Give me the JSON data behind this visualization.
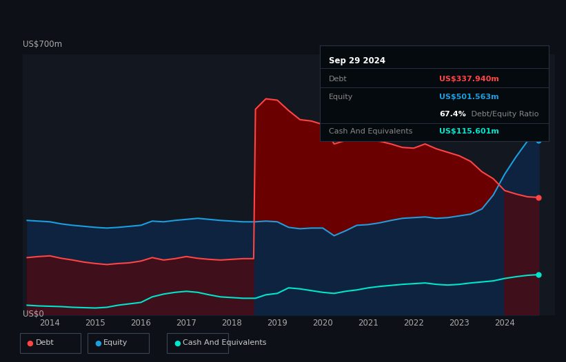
{
  "bg_color": "#0d1117",
  "plot_bg_color": "#131820",
  "debt_color": "#ff4444",
  "equity_color": "#1a9fe0",
  "cash_color": "#00e5cc",
  "debt_fill_color": "#6b0000",
  "equity_fill_color": "#0d2340",
  "cash_fill_color": "#0a2020",
  "grid_color": "#1e2535",
  "ylabel_top": "US$700m",
  "ylabel_bottom": "US$0",
  "x_ticks": [
    2014,
    2015,
    2016,
    2017,
    2018,
    2019,
    2020,
    2021,
    2022,
    2023,
    2024
  ],
  "debt_data": [
    [
      2013.5,
      165
    ],
    [
      2013.75,
      168
    ],
    [
      2014.0,
      170
    ],
    [
      2014.25,
      163
    ],
    [
      2014.5,
      158
    ],
    [
      2014.75,
      152
    ],
    [
      2015.0,
      148
    ],
    [
      2015.25,
      145
    ],
    [
      2015.5,
      148
    ],
    [
      2015.75,
      150
    ],
    [
      2016.0,
      155
    ],
    [
      2016.25,
      165
    ],
    [
      2016.5,
      158
    ],
    [
      2016.75,
      162
    ],
    [
      2017.0,
      168
    ],
    [
      2017.25,
      163
    ],
    [
      2017.5,
      160
    ],
    [
      2017.75,
      158
    ],
    [
      2018.0,
      160
    ],
    [
      2018.25,
      162
    ],
    [
      2018.48,
      162
    ],
    [
      2018.52,
      592
    ],
    [
      2018.75,
      622
    ],
    [
      2019.0,
      618
    ],
    [
      2019.25,
      588
    ],
    [
      2019.5,
      562
    ],
    [
      2019.75,
      558
    ],
    [
      2020.0,
      548
    ],
    [
      2020.25,
      492
    ],
    [
      2020.5,
      502
    ],
    [
      2020.75,
      508
    ],
    [
      2021.0,
      502
    ],
    [
      2021.25,
      500
    ],
    [
      2021.5,
      492
    ],
    [
      2021.75,
      482
    ],
    [
      2022.0,
      480
    ],
    [
      2022.25,
      492
    ],
    [
      2022.5,
      478
    ],
    [
      2022.75,
      468
    ],
    [
      2023.0,
      458
    ],
    [
      2023.25,
      442
    ],
    [
      2023.5,
      412
    ],
    [
      2023.75,
      392
    ],
    [
      2024.0,
      358
    ],
    [
      2024.25,
      348
    ],
    [
      2024.5,
      340
    ],
    [
      2024.75,
      338
    ]
  ],
  "equity_data": [
    [
      2013.5,
      272
    ],
    [
      2013.75,
      270
    ],
    [
      2014.0,
      268
    ],
    [
      2014.25,
      262
    ],
    [
      2014.5,
      258
    ],
    [
      2014.75,
      255
    ],
    [
      2015.0,
      252
    ],
    [
      2015.25,
      250
    ],
    [
      2015.5,
      252
    ],
    [
      2015.75,
      255
    ],
    [
      2016.0,
      258
    ],
    [
      2016.25,
      270
    ],
    [
      2016.5,
      268
    ],
    [
      2016.75,
      272
    ],
    [
      2017.0,
      275
    ],
    [
      2017.25,
      278
    ],
    [
      2017.5,
      275
    ],
    [
      2017.75,
      272
    ],
    [
      2018.0,
      270
    ],
    [
      2018.25,
      268
    ],
    [
      2018.48,
      268
    ],
    [
      2018.52,
      268
    ],
    [
      2018.75,
      270
    ],
    [
      2019.0,
      268
    ],
    [
      2019.25,
      252
    ],
    [
      2019.5,
      248
    ],
    [
      2019.75,
      250
    ],
    [
      2020.0,
      250
    ],
    [
      2020.25,
      228
    ],
    [
      2020.5,
      242
    ],
    [
      2020.75,
      258
    ],
    [
      2021.0,
      260
    ],
    [
      2021.25,
      265
    ],
    [
      2021.5,
      272
    ],
    [
      2021.75,
      278
    ],
    [
      2022.0,
      280
    ],
    [
      2022.25,
      282
    ],
    [
      2022.5,
      278
    ],
    [
      2022.75,
      280
    ],
    [
      2023.0,
      285
    ],
    [
      2023.25,
      290
    ],
    [
      2023.5,
      305
    ],
    [
      2023.75,
      345
    ],
    [
      2024.0,
      405
    ],
    [
      2024.25,
      455
    ],
    [
      2024.5,
      500
    ],
    [
      2024.75,
      502
    ]
  ],
  "cash_data": [
    [
      2013.5,
      28
    ],
    [
      2013.75,
      26
    ],
    [
      2014.0,
      25
    ],
    [
      2014.25,
      24
    ],
    [
      2014.5,
      22
    ],
    [
      2014.75,
      21
    ],
    [
      2015.0,
      20
    ],
    [
      2015.25,
      22
    ],
    [
      2015.5,
      28
    ],
    [
      2015.75,
      32
    ],
    [
      2016.0,
      36
    ],
    [
      2016.25,
      52
    ],
    [
      2016.5,
      60
    ],
    [
      2016.75,
      65
    ],
    [
      2017.0,
      68
    ],
    [
      2017.25,
      65
    ],
    [
      2017.5,
      58
    ],
    [
      2017.75,
      52
    ],
    [
      2018.0,
      50
    ],
    [
      2018.25,
      48
    ],
    [
      2018.48,
      48
    ],
    [
      2018.52,
      48
    ],
    [
      2018.75,
      58
    ],
    [
      2019.0,
      62
    ],
    [
      2019.25,
      78
    ],
    [
      2019.5,
      75
    ],
    [
      2019.75,
      70
    ],
    [
      2020.0,
      65
    ],
    [
      2020.25,
      62
    ],
    [
      2020.5,
      68
    ],
    [
      2020.75,
      72
    ],
    [
      2021.0,
      78
    ],
    [
      2021.25,
      82
    ],
    [
      2021.5,
      85
    ],
    [
      2021.75,
      88
    ],
    [
      2022.0,
      90
    ],
    [
      2022.25,
      92
    ],
    [
      2022.5,
      88
    ],
    [
      2022.75,
      86
    ],
    [
      2023.0,
      88
    ],
    [
      2023.25,
      92
    ],
    [
      2023.5,
      95
    ],
    [
      2023.75,
      98
    ],
    [
      2024.0,
      105
    ],
    [
      2024.25,
      110
    ],
    [
      2024.5,
      114
    ],
    [
      2024.75,
      116
    ]
  ],
  "tooltip": {
    "date": "Sep 29 2024",
    "debt_label": "Debt",
    "debt_value": "US$337.940m",
    "equity_label": "Equity",
    "equity_value": "US$501.563m",
    "ratio_bold": "67.4%",
    "ratio_text": " Debt/Equity Ratio",
    "cash_label": "Cash And Equivalents",
    "cash_value": "US$115.601m"
  },
  "legend": [
    {
      "label": "Debt",
      "color": "#ff4444"
    },
    {
      "label": "Equity",
      "color": "#1a9fe0"
    },
    {
      "label": "Cash And Equivalents",
      "color": "#00e5cc"
    }
  ]
}
